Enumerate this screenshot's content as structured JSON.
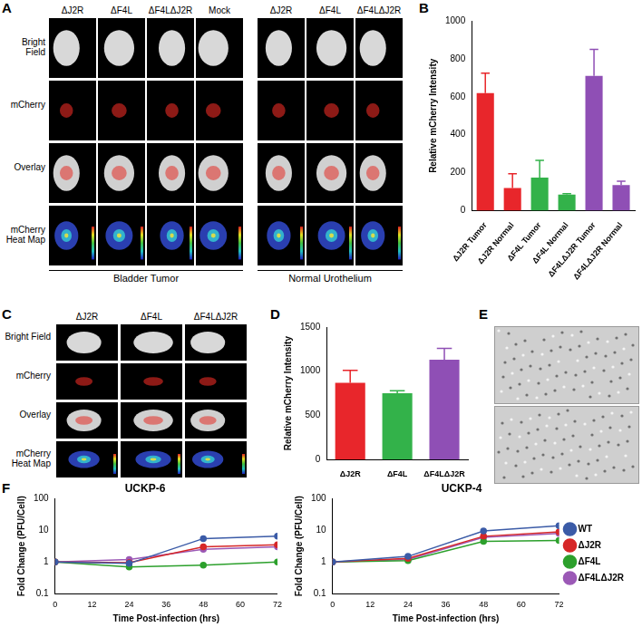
{
  "panels": {
    "A": {
      "label": "A",
      "row_labels": [
        "Bright Field",
        "mCherry",
        "Overlay",
        "mCherry Heat Map"
      ],
      "groups": [
        {
          "name": "Bladder Tumor",
          "columns": [
            "ΔJ2R",
            "ΔF4L",
            "ΔF4LΔJ2R",
            "Mock"
          ]
        },
        {
          "name": "Normal Urothelium",
          "columns": [
            "ΔJ2R",
            "ΔF4L",
            "ΔF4LΔJ2R"
          ]
        }
      ]
    },
    "B": {
      "label": "B"
    },
    "C": {
      "label": "C",
      "row_labels": [
        "Bright Field",
        "mCherry",
        "Overlay",
        "mCherry Heat Map"
      ],
      "columns": [
        "ΔJ2R",
        "ΔF4L",
        "ΔF4LΔJ2R"
      ]
    },
    "D": {
      "label": "D"
    },
    "E": {
      "label": "E"
    },
    "F": {
      "label": "F"
    }
  },
  "chart_data": [
    {
      "type": "bar",
      "y_label": "Relative mCherry Intensity",
      "categories": [
        "ΔJ2R Tumor",
        "ΔJ2R Normal",
        "ΔF4L Tumor",
        "ΔF4L Normal",
        "ΔF4LΔJ2R Tumor",
        "ΔF4LΔJ2R Normal"
      ],
      "values": [
        620,
        120,
        175,
        85,
        710,
        135
      ],
      "errors": [
        105,
        75,
        90,
        5,
        140,
        20
      ],
      "colors": [
        "#e8262b",
        "#e8262b",
        "#33b24a",
        "#33b24a",
        "#8f4fb5",
        "#8f4fb5"
      ],
      "ylim": [
        0,
        1000
      ],
      "yticks": [
        0,
        200,
        400,
        600,
        800,
        1000
      ],
      "grid": false
    },
    {
      "type": "bar",
      "y_label": "Relative mCherry Intensity",
      "categories": [
        "ΔJ2R",
        "ΔF4L",
        "ΔF4LΔJ2R"
      ],
      "values": [
        870,
        750,
        1130
      ],
      "errors": [
        140,
        30,
        130
      ],
      "colors": [
        "#e8262b",
        "#33b24a",
        "#8f4fb5"
      ],
      "ylim": [
        0,
        1500
      ],
      "yticks": [
        0,
        500,
        1000,
        1500
      ],
      "grid": false
    },
    {
      "type": "line",
      "title": "UCKP-6",
      "x_label": "Time Post-infection (hrs)",
      "y_label": "Fold Change (PFU/Cell)",
      "x": [
        0,
        24,
        48,
        72
      ],
      "xlim": [
        0,
        72
      ],
      "xticks": [
        0,
        12,
        24,
        36,
        48,
        60,
        72
      ],
      "ylim": [
        0.1,
        100
      ],
      "yticks": [
        0.1,
        1,
        10,
        100
      ],
      "log": "y",
      "grid": false,
      "marker": "circle",
      "series": [
        {
          "name": "WT",
          "color": "#3b5ba7",
          "values": [
            1,
            0.9,
            5.5,
            6.5
          ]
        },
        {
          "name": "ΔJ2R",
          "color": "#d62728",
          "values": [
            1,
            0.95,
            3,
            3.5
          ]
        },
        {
          "name": "ΔF4L",
          "color": "#2ca02c",
          "values": [
            1,
            0.7,
            0.8,
            1.0
          ]
        },
        {
          "name": "ΔF4LΔJ2R",
          "color": "#9b59b6",
          "values": [
            1,
            1.2,
            2.5,
            3.0
          ]
        }
      ]
    },
    {
      "type": "line",
      "title": "UCKP-4",
      "x_label": "Time Post-infection (hrs)",
      "y_label": "Fold Change (PFU/Cell)",
      "x": [
        0,
        24,
        48,
        72
      ],
      "xlim": [
        0,
        72
      ],
      "xticks": [
        0,
        12,
        24,
        36,
        48,
        60,
        72
      ],
      "ylim": [
        0.1,
        100
      ],
      "yticks": [
        0.1,
        1,
        10,
        100
      ],
      "log": "y",
      "grid": false,
      "marker": "circle",
      "legend": "right",
      "series": [
        {
          "name": "WT",
          "color": "#3b5ba7",
          "values": [
            1,
            1.5,
            9.5,
            14
          ]
        },
        {
          "name": "ΔJ2R",
          "color": "#d62728",
          "values": [
            1,
            1.3,
            6.5,
            9
          ]
        },
        {
          "name": "ΔF4L",
          "color": "#2ca02c",
          "values": [
            1,
            1.1,
            4.5,
            4.8
          ]
        },
        {
          "name": "ΔF4LΔJ2R",
          "color": "#9b59b6",
          "values": [
            1,
            1.2,
            6,
            8
          ]
        }
      ]
    }
  ]
}
